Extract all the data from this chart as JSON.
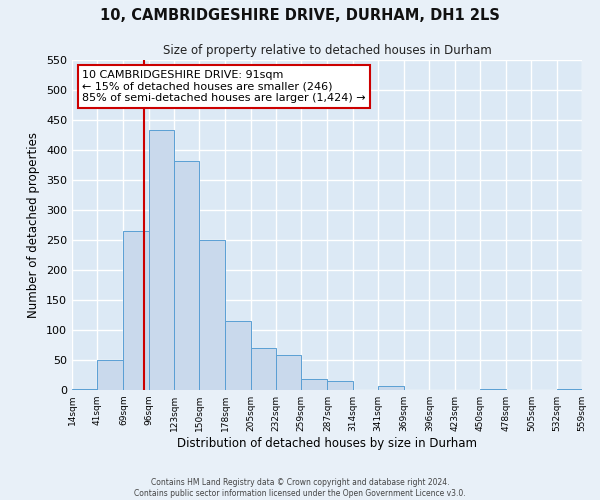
{
  "title": "10, CAMBRIDGESHIRE DRIVE, DURHAM, DH1 2LS",
  "subtitle": "Size of property relative to detached houses in Durham",
  "xlabel": "Distribution of detached houses by size in Durham",
  "ylabel": "Number of detached properties",
  "bar_color": "#c9d9ec",
  "bar_edge_color": "#5a9fd4",
  "bg_color": "#dce9f5",
  "fig_bg_color": "#e8f0f8",
  "grid_color": "#ffffff",
  "vline_x": 91,
  "vline_color": "#cc0000",
  "bin_edges": [
    14,
    41,
    69,
    96,
    123,
    150,
    178,
    205,
    232,
    259,
    287,
    314,
    341,
    369,
    396,
    423,
    450,
    478,
    505,
    532,
    559
  ],
  "bin_labels": [
    "14sqm",
    "41sqm",
    "69sqm",
    "96sqm",
    "123sqm",
    "150sqm",
    "178sqm",
    "205sqm",
    "232sqm",
    "259sqm",
    "287sqm",
    "314sqm",
    "341sqm",
    "369sqm",
    "396sqm",
    "423sqm",
    "450sqm",
    "478sqm",
    "505sqm",
    "532sqm",
    "559sqm"
  ],
  "counts": [
    2,
    50,
    265,
    433,
    382,
    250,
    115,
    70,
    58,
    18,
    15,
    0,
    7,
    0,
    0,
    0,
    2,
    0,
    0,
    1
  ],
  "ylim": [
    0,
    550
  ],
  "yticks": [
    0,
    50,
    100,
    150,
    200,
    250,
    300,
    350,
    400,
    450,
    500,
    550
  ],
  "annotation_title": "10 CAMBRIDGESHIRE DRIVE: 91sqm",
  "annotation_line1": "← 15% of detached houses are smaller (246)",
  "annotation_line2": "85% of semi-detached houses are larger (1,424) →",
  "annotation_box_color": "#ffffff",
  "annotation_box_edge": "#cc0000",
  "footer1": "Contains HM Land Registry data © Crown copyright and database right 2024.",
  "footer2": "Contains public sector information licensed under the Open Government Licence v3.0."
}
